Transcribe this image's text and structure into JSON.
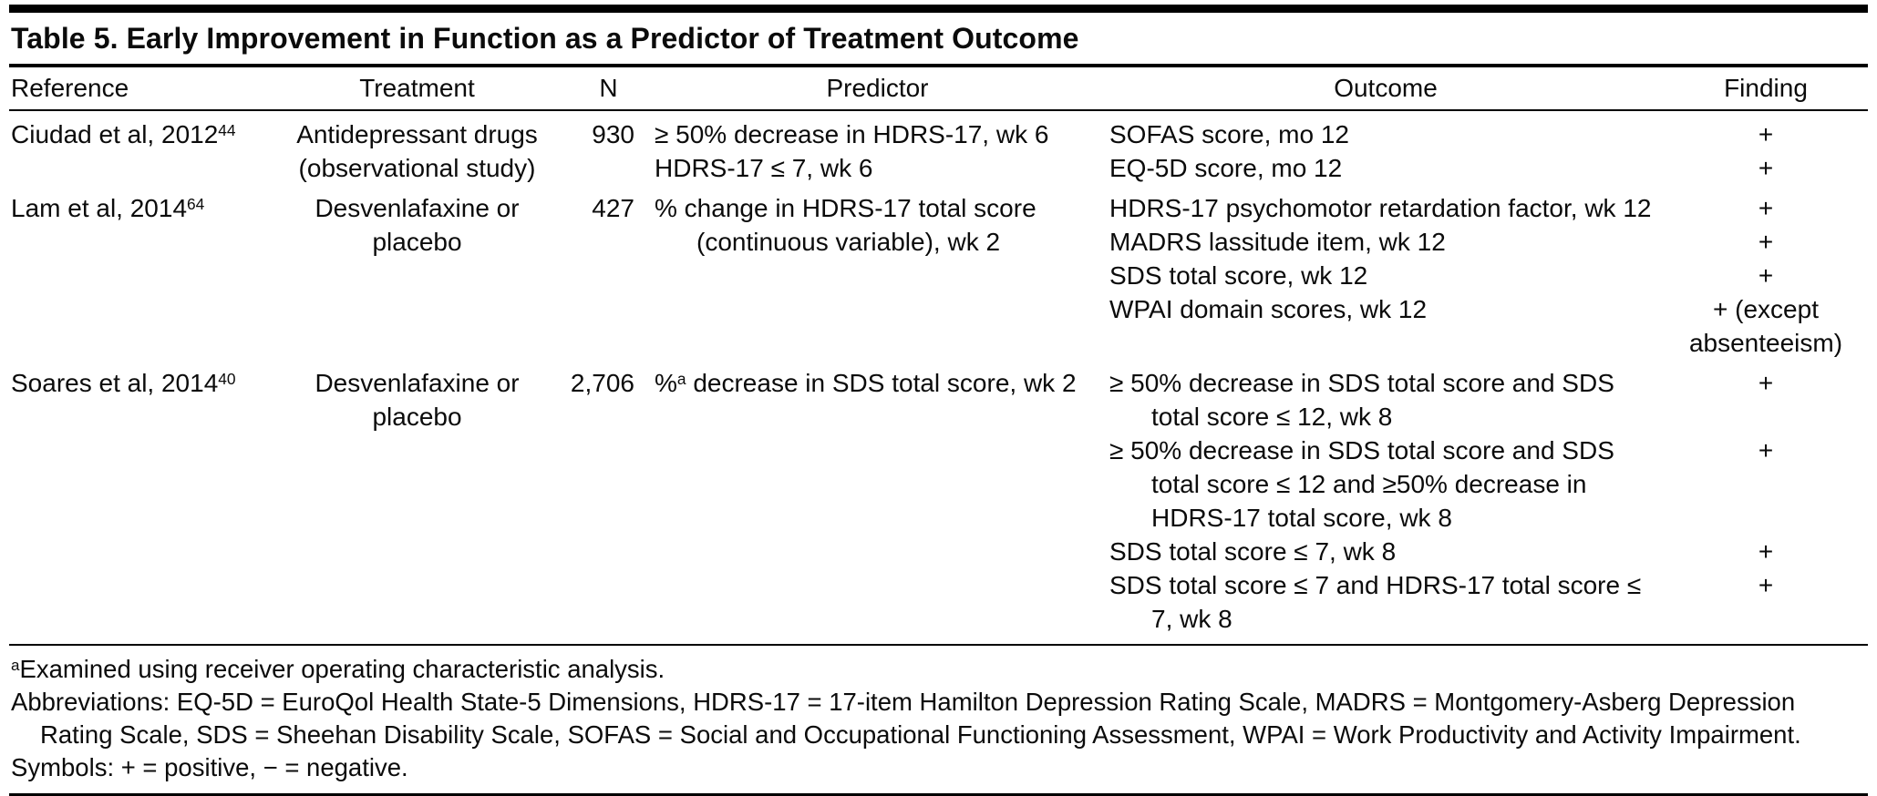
{
  "table": {
    "title": "Table 5. Early Improvement in Function as a Predictor of Treatment Outcome",
    "headers": [
      "Reference",
      "Treatment",
      "N",
      "Predictor",
      "Outcome",
      "Finding"
    ],
    "rows": [
      {
        "reference": {
          "text": "Ciudad et al, 2012",
          "sup": "44"
        },
        "treatment": [
          "Antidepressant drugs",
          "(observational study)"
        ],
        "n": "930",
        "predictor": [
          {
            "pre": "≥ 50% decrease in HDRS-17, wk 6"
          },
          {
            "pre": "HDRS-17 ≤ 7, wk 6"
          }
        ],
        "outcomes": [
          {
            "text": "SOFAS score, mo 12",
            "finding": "+"
          },
          {
            "text": "EQ-5D score, mo 12",
            "finding": "+"
          }
        ]
      },
      {
        "reference": {
          "text": "Lam et al, 2014",
          "sup": "64"
        },
        "treatment": [
          "Desvenlafaxine or",
          "placebo"
        ],
        "n": "427",
        "predictor": [
          {
            "pre": "% change in HDRS-17 total score"
          },
          {
            "pre": "(continuous variable), wk 2"
          }
        ],
        "outcomes": [
          {
            "text": "HDRS-17 psychomotor retardation factor, wk 12",
            "finding": "+"
          },
          {
            "text": "MADRS lassitude item, wk 12",
            "finding": "+"
          },
          {
            "text": "SDS total score, wk 12",
            "finding": "+"
          },
          {
            "text": "WPAI domain scores, wk 12",
            "finding": "+ (except absenteeism)"
          }
        ]
      },
      {
        "reference": {
          "text": "Soares et al, 2014",
          "sup": "40"
        },
        "treatment": [
          "Desvenlafaxine or",
          "placebo"
        ],
        "n": "2,706",
        "predictor": [
          {
            "pre": "%",
            "sup": "a",
            "post": " decrease in SDS total score, wk 2"
          }
        ],
        "outcomes": [
          {
            "text": "≥ 50% decrease in SDS total score and SDS total score ≤ 12, wk 8",
            "finding": "+"
          },
          {
            "text": "≥ 50% decrease in SDS total score and SDS total score ≤ 12 and ≥50% decrease in HDRS-17 total score, wk 8",
            "finding": "+"
          },
          {
            "text": "SDS total score ≤ 7, wk 8",
            "finding": "+"
          },
          {
            "text": "SDS total score ≤ 7 and HDRS-17 total score ≤ 7, wk 8",
            "finding": "+"
          }
        ]
      }
    ],
    "footnotes": {
      "a": {
        "sup": "a",
        "text": "Examined using receiver operating characteristic analysis."
      },
      "abbreviations": "Abbreviations: EQ-5D = EuroQol Health State-5 Dimensions, HDRS-17 = 17-item Hamilton Depression Rating Scale, MADRS = Montgomery-Asberg Depression Rating Scale, SDS = Sheehan Disability Scale, SOFAS = Social and Occupational Functioning Assessment, WPAI = Work Productivity and Activity Impairment.",
      "symbols": "Symbols: + = positive, − = negative."
    }
  }
}
